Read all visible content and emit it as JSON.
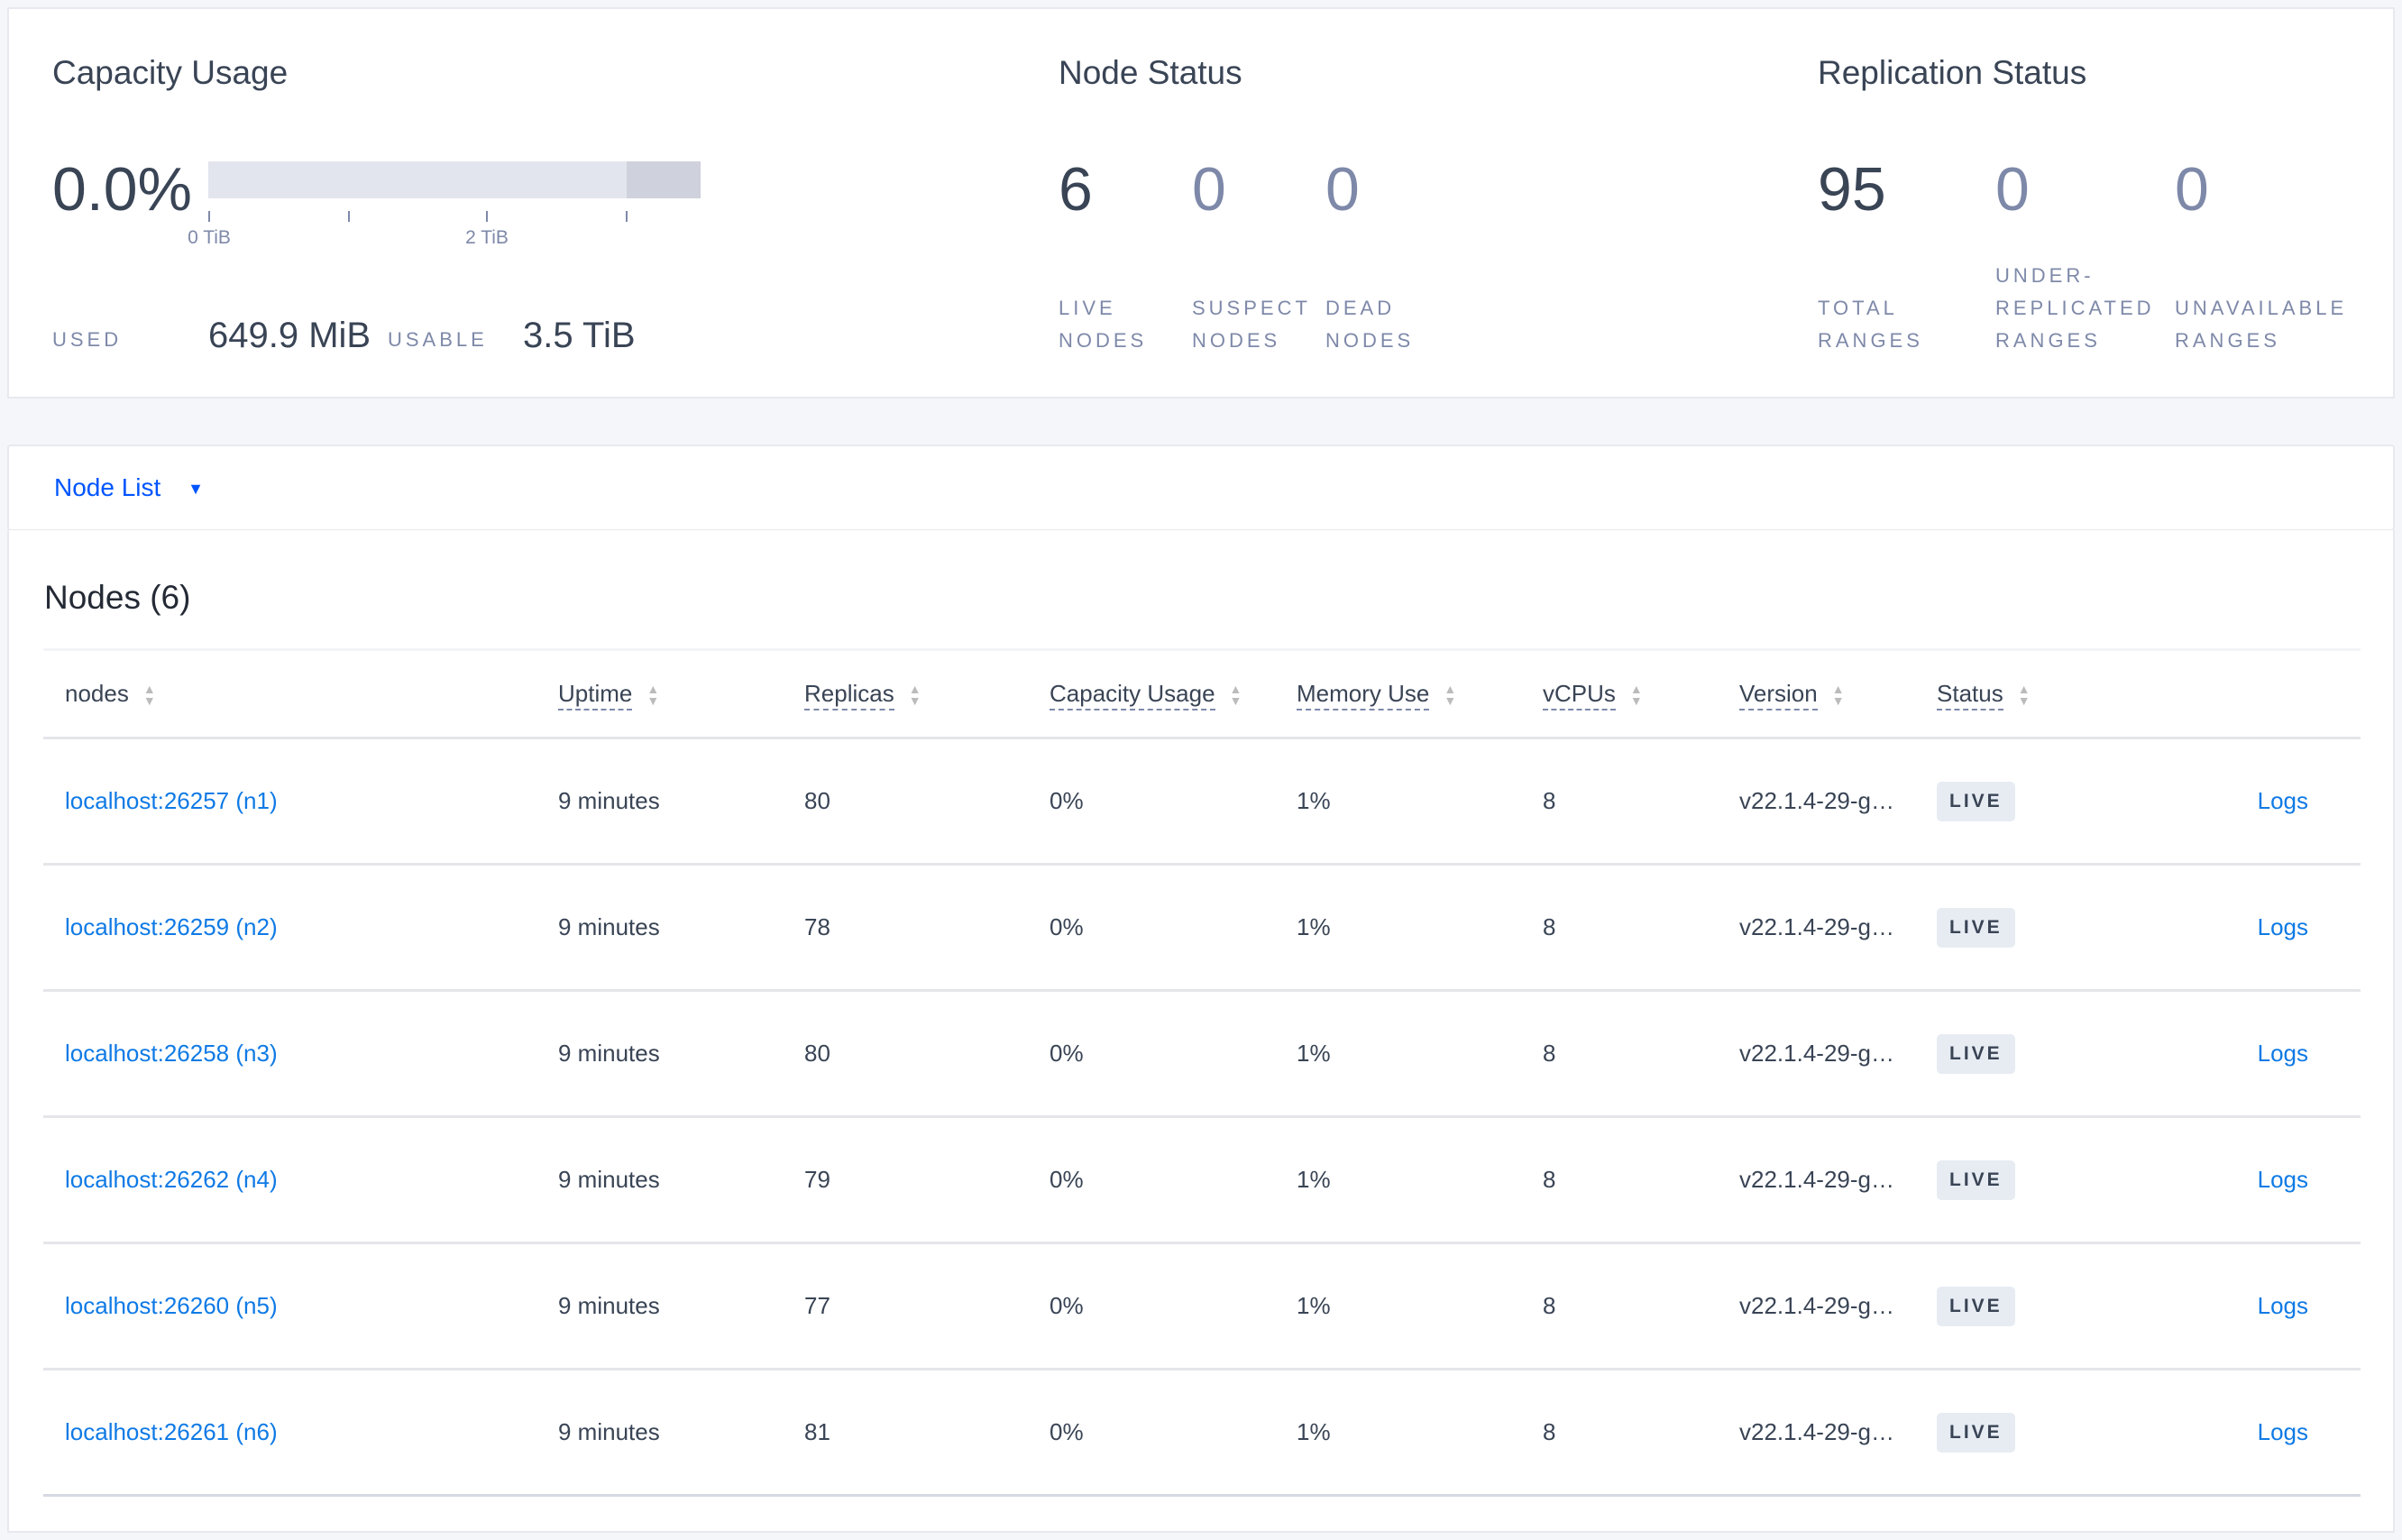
{
  "capacity": {
    "title": "Capacity Usage",
    "percent": "0.0%",
    "usage_fraction": 0.0,
    "ticks": [
      "0 TiB",
      "2 TiB"
    ],
    "used_label": "USED",
    "used_value": "649.9 MiB",
    "usable_label": "USABLE",
    "usable_value": "3.5 TiB"
  },
  "node_status": {
    "title": "Node Status",
    "stats": [
      {
        "value": "6",
        "label1": "LIVE",
        "label2": "NODES"
      },
      {
        "value": "0",
        "label1": "SUSPECT",
        "label2": "NODES"
      },
      {
        "value": "0",
        "label1": "DEAD",
        "label2": "NODES"
      }
    ]
  },
  "replication_status": {
    "title": "Replication Status",
    "stats": [
      {
        "value": "95",
        "label1": "",
        "label2": "TOTAL",
        "label3": "RANGES"
      },
      {
        "value": "0",
        "label1": "UNDER-",
        "label2": "REPLICATED",
        "label3": "RANGES"
      },
      {
        "value": "0",
        "label1": "",
        "label2": "UNAVAILABLE",
        "label3": "RANGES"
      }
    ]
  },
  "view_selector": {
    "label": "Node List"
  },
  "nodes_table": {
    "title": "Nodes (6)",
    "columns": [
      "nodes",
      "Uptime",
      "Replicas",
      "Capacity Usage",
      "Memory Use",
      "vCPUs",
      "Version",
      "Status"
    ],
    "rows": [
      {
        "node": "localhost:26257 (n1)",
        "uptime": "9 minutes",
        "replicas": "80",
        "capacity": "0%",
        "memory": "1%",
        "vcpus": "8",
        "version": "v22.1.4-29-g…",
        "status": "LIVE",
        "logs": "Logs"
      },
      {
        "node": "localhost:26259 (n2)",
        "uptime": "9 minutes",
        "replicas": "78",
        "capacity": "0%",
        "memory": "1%",
        "vcpus": "8",
        "version": "v22.1.4-29-g…",
        "status": "LIVE",
        "logs": "Logs"
      },
      {
        "node": "localhost:26258 (n3)",
        "uptime": "9 minutes",
        "replicas": "80",
        "capacity": "0%",
        "memory": "1%",
        "vcpus": "8",
        "version": "v22.1.4-29-g…",
        "status": "LIVE",
        "logs": "Logs"
      },
      {
        "node": "localhost:26262 (n4)",
        "uptime": "9 minutes",
        "replicas": "79",
        "capacity": "0%",
        "memory": "1%",
        "vcpus": "8",
        "version": "v22.1.4-29-g…",
        "status": "LIVE",
        "logs": "Logs"
      },
      {
        "node": "localhost:26260 (n5)",
        "uptime": "9 minutes",
        "replicas": "77",
        "capacity": "0%",
        "memory": "1%",
        "vcpus": "8",
        "version": "v22.1.4-29-g…",
        "status": "LIVE",
        "logs": "Logs"
      },
      {
        "node": "localhost:26261 (n6)",
        "uptime": "9 minutes",
        "replicas": "81",
        "capacity": "0%",
        "memory": "1%",
        "vcpus": "8",
        "version": "v22.1.4-29-g…",
        "status": "LIVE",
        "logs": "Logs"
      }
    ]
  },
  "colors": {
    "link": "#0f7ae5",
    "selector": "#0055ff",
    "text": "#394455",
    "muted": "#7e89a9"
  }
}
